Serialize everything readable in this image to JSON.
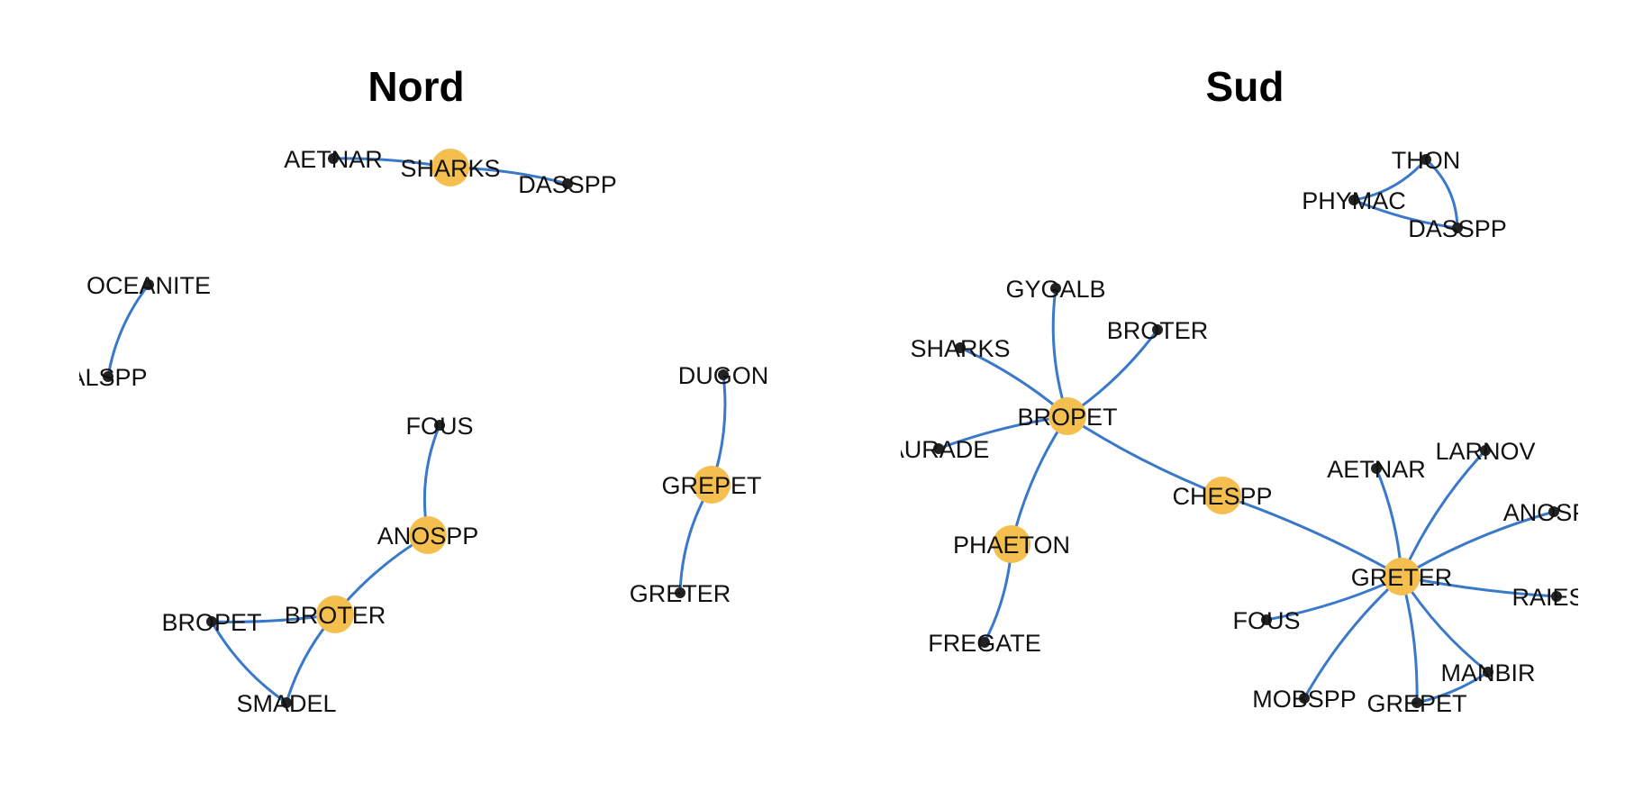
{
  "colors": {
    "edge": "#3a78c9",
    "hub": "#f5bf4f",
    "leaf": "#222222",
    "text": "#111111"
  },
  "panels": [
    {
      "title": "Nord",
      "nodes": [
        {
          "id": "n_aetnar",
          "label": "AETNAR",
          "type": "leaf"
        },
        {
          "id": "n_sharks",
          "label": "SHARKS",
          "type": "hub"
        },
        {
          "id": "n_dasspp",
          "label": "DASSPP",
          "type": "leaf"
        },
        {
          "id": "n_oceanite",
          "label": "OCEANITE",
          "type": "leaf"
        },
        {
          "id": "n_alspp",
          "label": "ALSPP",
          "type": "leaf"
        },
        {
          "id": "n_fous",
          "label": "FOUS",
          "type": "leaf"
        },
        {
          "id": "n_anospp",
          "label": "ANOSPP",
          "type": "hub"
        },
        {
          "id": "n_broter",
          "label": "BROTER",
          "type": "hub"
        },
        {
          "id": "n_bropet",
          "label": "BROPET",
          "type": "leaf"
        },
        {
          "id": "n_smadel",
          "label": "SMADEL",
          "type": "leaf"
        },
        {
          "id": "n_dugon",
          "label": "DUGON",
          "type": "leaf"
        },
        {
          "id": "n_grepet",
          "label": "GREPET",
          "type": "hub"
        },
        {
          "id": "n_greter",
          "label": "GRETER",
          "type": "leaf"
        }
      ],
      "edges": [
        [
          "n_aetnar",
          "n_sharks"
        ],
        [
          "n_sharks",
          "n_dasspp"
        ],
        [
          "n_oceanite",
          "n_alspp"
        ],
        [
          "n_fous",
          "n_anospp"
        ],
        [
          "n_anospp",
          "n_broter"
        ],
        [
          "n_broter",
          "n_bropet"
        ],
        [
          "n_broter",
          "n_smadel"
        ],
        [
          "n_bropet",
          "n_smadel"
        ],
        [
          "n_dugon",
          "n_grepet"
        ],
        [
          "n_grepet",
          "n_greter"
        ]
      ]
    },
    {
      "title": "Sud",
      "nodes": [
        {
          "id": "s_thon",
          "label": "THON",
          "type": "leaf"
        },
        {
          "id": "s_phymac",
          "label": "PHYMAC",
          "type": "leaf"
        },
        {
          "id": "s_dasspp",
          "label": "DASSPP",
          "type": "leaf"
        },
        {
          "id": "s_gygalb",
          "label": "GYGALB",
          "type": "leaf"
        },
        {
          "id": "s_broter",
          "label": "BROTER",
          "type": "leaf"
        },
        {
          "id": "s_sharks",
          "label": "SHARKS",
          "type": "leaf"
        },
        {
          "id": "s_bropet",
          "label": "BROPET",
          "type": "hub"
        },
        {
          "id": "s_aurade",
          "label": "AURADE",
          "type": "leaf"
        },
        {
          "id": "s_phaeton",
          "label": "PHAETON",
          "type": "hub"
        },
        {
          "id": "s_fregate",
          "label": "FREGATE",
          "type": "leaf"
        },
        {
          "id": "s_chespp",
          "label": "CHESPP",
          "type": "hub"
        },
        {
          "id": "s_aetnar",
          "label": "AETNAR",
          "type": "leaf"
        },
        {
          "id": "s_larnov",
          "label": "LARNOV",
          "type": "leaf"
        },
        {
          "id": "s_anospp",
          "label": "ANOSPP",
          "type": "leaf"
        },
        {
          "id": "s_greter",
          "label": "GRETER",
          "type": "hub"
        },
        {
          "id": "s_raiesp",
          "label": "RAIESP",
          "type": "leaf"
        },
        {
          "id": "s_fous",
          "label": "FOUS",
          "type": "leaf"
        },
        {
          "id": "s_manbir",
          "label": "MANBIR",
          "type": "leaf"
        },
        {
          "id": "s_mobspp",
          "label": "MOBSPP",
          "type": "leaf"
        },
        {
          "id": "s_grepet",
          "label": "GREPET",
          "type": "leaf"
        }
      ],
      "edges": [
        [
          "s_phymac",
          "s_thon"
        ],
        [
          "s_thon",
          "s_dasspp"
        ],
        [
          "s_phymac",
          "s_dasspp"
        ],
        [
          "s_gygalb",
          "s_bropet"
        ],
        [
          "s_broter",
          "s_bropet"
        ],
        [
          "s_sharks",
          "s_bropet"
        ],
        [
          "s_aurade",
          "s_bropet"
        ],
        [
          "s_bropet",
          "s_phaeton"
        ],
        [
          "s_phaeton",
          "s_fregate"
        ],
        [
          "s_bropet",
          "s_chespp"
        ],
        [
          "s_chespp",
          "s_greter"
        ],
        [
          "s_aetnar",
          "s_greter"
        ],
        [
          "s_larnov",
          "s_greter"
        ],
        [
          "s_anospp",
          "s_greter"
        ],
        [
          "s_raiesp",
          "s_greter"
        ],
        [
          "s_fous",
          "s_greter"
        ],
        [
          "s_manbir",
          "s_greter"
        ],
        [
          "s_mobspp",
          "s_greter"
        ],
        [
          "s_grepet",
          "s_greter"
        ],
        [
          "s_grepet",
          "s_manbir"
        ]
      ]
    }
  ]
}
